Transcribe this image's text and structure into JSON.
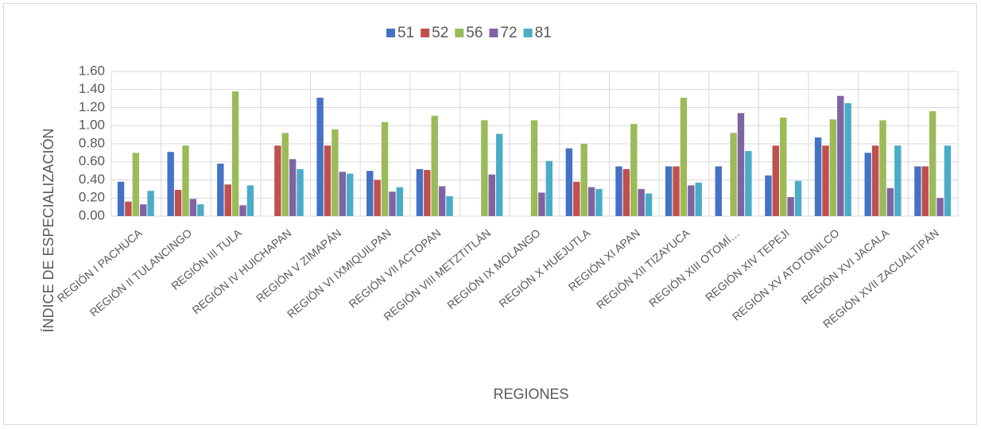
{
  "chart_data": {
    "type": "bar",
    "categories": [
      "REGIÓN I PACHUCA",
      "REGIÓN II TULANCINGO",
      "REGIÓN III TULA",
      "REGIÓN IV HUICHAPAN",
      "REGIÓN V ZIMAPÁN",
      "REGIÓN VI IXMIQUILPAN",
      "REGIÓN VII ACTOPAN",
      "REGIÓN VIII METZTITLÁN",
      "REGIÓN IX MOLANGO",
      "REGIÓN X HUEJUTLA",
      "REGIÓN XI APAN",
      "REGIÓN XII TIZAYUCA",
      "REGIÓN XIII OTOMÍ…",
      "REGIÓN XIV TEPEJI",
      "REGIÓN XV ATOTONILCO",
      "REGIÓN XVI JACALA",
      "REGIÓN XVII ZACUALTIPÁN"
    ],
    "series": [
      {
        "name": "51",
        "color": "#4472c4",
        "values": [
          0.38,
          0.71,
          0.58,
          0,
          1.31,
          0.5,
          0.52,
          0,
          0,
          0.75,
          0.55,
          0.55,
          0.55,
          0.45,
          0.87,
          0.7,
          0.55
        ]
      },
      {
        "name": "52",
        "color": "#c0504d",
        "values": [
          0.16,
          0.29,
          0.35,
          0.78,
          0.78,
          0.4,
          0.51,
          0,
          0,
          0.38,
          0.52,
          0.55,
          0,
          0.78,
          0.78,
          0.78,
          0.55
        ]
      },
      {
        "name": "56",
        "color": "#9bbb59",
        "values": [
          0.7,
          0.78,
          1.38,
          0.92,
          0.96,
          1.04,
          1.11,
          1.06,
          1.06,
          0.8,
          1.02,
          1.31,
          0.92,
          1.09,
          1.07,
          1.06,
          1.16
        ]
      },
      {
        "name": "72",
        "color": "#8064a2",
        "values": [
          0.13,
          0.19,
          0.12,
          0.63,
          0.49,
          0.27,
          0.33,
          0.46,
          0.26,
          0.32,
          0.3,
          0.34,
          1.14,
          0.21,
          1.33,
          0.31,
          0.2
        ]
      },
      {
        "name": "81",
        "color": "#4bacc6",
        "values": [
          0.28,
          0.13,
          0.34,
          0.52,
          0.47,
          0.32,
          0.22,
          0.91,
          0.61,
          0.3,
          0.25,
          0.37,
          0.72,
          0.39,
          1.25,
          0.78,
          0.78
        ]
      }
    ],
    "xlabel": "REGIONES",
    "ylabel": "ÍNDICE DE ESPECIALIZACIÓN",
    "ylim": [
      0,
      1.6
    ],
    "yticks": [
      {
        "value": 0,
        "label": "0.00"
      },
      {
        "value": 0.2,
        "label": "0.20"
      },
      {
        "value": 0.4,
        "label": "0.40"
      },
      {
        "value": 0.6,
        "label": "0.60"
      },
      {
        "value": 0.8,
        "label": "0.80"
      },
      {
        "value": 1.0,
        "label": "1.00"
      },
      {
        "value": 1.2,
        "label": "1.20"
      },
      {
        "value": 1.4,
        "label": "1.40"
      },
      {
        "value": 1.6,
        "label": "1.60"
      }
    ],
    "grid": true,
    "legend": "top"
  }
}
